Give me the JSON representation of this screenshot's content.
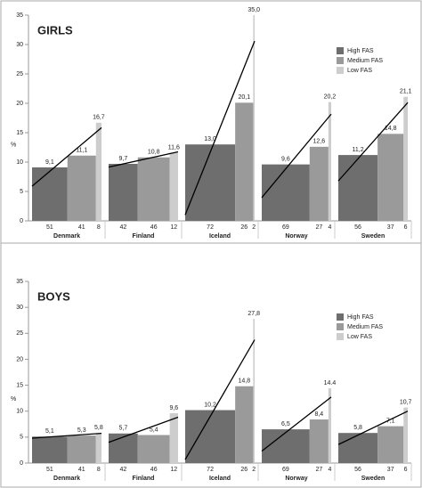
{
  "chart_data": [
    {
      "type": "bar",
      "title": "GIRLS",
      "ylabel": "%",
      "legend": "upper right",
      "categories": [
        "Denmark",
        "Finland",
        "Iceland",
        "Norway",
        "Sweden"
      ],
      "ylim": [
        0,
        35
      ],
      "yticks": [
        0,
        5,
        10,
        15,
        20,
        25,
        30,
        35
      ],
      "series": [
        {
          "name": "High FAS",
          "color": "#6e6e6e",
          "values": [
            9.1,
            9.7,
            13.0,
            9.6,
            11.2
          ],
          "value_labels": [
            "9,1",
            "9,7",
            "13,0",
            "9,6",
            "11,2"
          ],
          "n": [
            51,
            42,
            72,
            69,
            56
          ]
        },
        {
          "name": "Medium FAS",
          "color": "#9a9a9a",
          "values": [
            11.1,
            10.8,
            20.1,
            12.6,
            14.8
          ],
          "value_labels": [
            "11,1",
            "10,8",
            "20,1",
            "12,6",
            "14,8"
          ],
          "n": [
            41,
            46,
            26,
            27,
            37
          ]
        },
        {
          "name": "Low FAS",
          "color": "#cdcdcd",
          "values": [
            16.7,
            11.6,
            35.0,
            20.2,
            21.1
          ],
          "value_labels": [
            "16,7",
            "11,6",
            "35,0",
            "20,2",
            "21,1"
          ],
          "n": [
            8,
            12,
            2,
            4,
            6
          ]
        }
      ]
    },
    {
      "type": "bar",
      "title": "BOYS",
      "ylabel": "%",
      "legend": "upper right",
      "categories": [
        "Denmark",
        "Finland",
        "Iceland",
        "Norway",
        "Sweden"
      ],
      "ylim": [
        0,
        35
      ],
      "yticks": [
        0,
        5,
        10,
        15,
        20,
        25,
        30,
        35
      ],
      "series": [
        {
          "name": "High FAS",
          "color": "#6e6e6e",
          "values": [
            5.1,
            5.7,
            10.2,
            6.5,
            5.8
          ],
          "value_labels": [
            "5,1",
            "5,7",
            "10,2",
            "6,5",
            "5,8"
          ],
          "n": [
            51,
            42,
            72,
            69,
            56
          ]
        },
        {
          "name": "Medium FAS",
          "color": "#9a9a9a",
          "values": [
            5.3,
            5.4,
            14.8,
            8.4,
            7.1
          ],
          "value_labels": [
            "5,3",
            "5,4",
            "14,8",
            "8,4",
            "7,1"
          ],
          "n": [
            41,
            46,
            26,
            27,
            37
          ]
        },
        {
          "name": "Low FAS",
          "color": "#cdcdcd",
          "values": [
            5.8,
            9.6,
            27.8,
            14.4,
            10.7
          ],
          "value_labels": [
            "5,8",
            "9,6",
            "27,8",
            "14.4",
            "10,7"
          ],
          "n": [
            8,
            12,
            2,
            4,
            6
          ]
        }
      ]
    }
  ]
}
